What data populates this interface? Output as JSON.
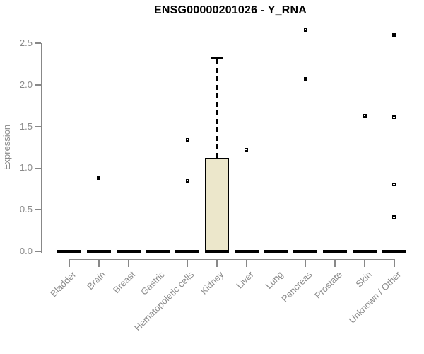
{
  "chart_data": {
    "type": "boxplot",
    "title": "ENSG00000201026 - Y_RNA",
    "ylabel": "Expression",
    "xlabel": "",
    "ylim": [
      0,
      2.5
    ],
    "ytick_values": [
      0,
      0.5,
      1,
      1.5,
      2,
      2.5
    ],
    "ytick_labels": [
      "0.0",
      "0.5",
      "1.0",
      "1.5",
      "2.0",
      "2.5"
    ],
    "grid": "off",
    "legend": "none",
    "categories": [
      "Bladder",
      "Brain",
      "Breast",
      "Gastric",
      "Hematopoietic cells",
      "Kidney",
      "Liver",
      "Lung",
      "Pancreas",
      "Prostate",
      "Skin",
      "Unknown / Other"
    ],
    "boxes": [
      {
        "category": "Bladder",
        "min": 0,
        "q1": 0,
        "median": 0,
        "q3": 0,
        "max": 0,
        "outliers": []
      },
      {
        "category": "Brain",
        "min": 0,
        "q1": 0,
        "median": 0,
        "q3": 0,
        "max": 0,
        "outliers": [
          0.88
        ]
      },
      {
        "category": "Breast",
        "min": 0,
        "q1": 0,
        "median": 0,
        "q3": 0,
        "max": 0,
        "outliers": []
      },
      {
        "category": "Gastric",
        "min": 0,
        "q1": 0,
        "median": 0,
        "q3": 0,
        "max": 0,
        "outliers": []
      },
      {
        "category": "Hematopoietic cells",
        "min": 0,
        "q1": 0,
        "median": 0,
        "q3": 0,
        "max": 0,
        "outliers": [
          1.34,
          0.85
        ]
      },
      {
        "category": "Kidney",
        "min": 0,
        "q1": 0,
        "median": 0,
        "q3": 1.12,
        "max": 2.32,
        "outliers": []
      },
      {
        "category": "Liver",
        "min": 0,
        "q1": 0,
        "median": 0,
        "q3": 0,
        "max": 0,
        "outliers": [
          1.22
        ]
      },
      {
        "category": "Lung",
        "min": 0,
        "q1": 0,
        "median": 0,
        "q3": 0,
        "max": 0,
        "outliers": []
      },
      {
        "category": "Pancreas",
        "min": 0,
        "q1": 0,
        "median": 0,
        "q3": 0,
        "max": 0,
        "outliers": [
          2.66,
          2.07
        ]
      },
      {
        "category": "Prostate",
        "min": 0,
        "q1": 0,
        "median": 0,
        "q3": 0,
        "max": 0,
        "outliers": []
      },
      {
        "category": "Skin",
        "min": 0,
        "q1": 0,
        "median": 0,
        "q3": 0,
        "max": 0,
        "outliers": [
          1.63
        ]
      },
      {
        "category": "Unknown / Other",
        "min": 0,
        "q1": 0,
        "median": 0,
        "q3": 0,
        "max": 0,
        "outliers": [
          2.6,
          1.61,
          0.8,
          0.41
        ]
      }
    ],
    "colors": {
      "box_fill": "#ECE7CB",
      "box_stroke": "#000000",
      "median": "#000000",
      "outlier": "#000000",
      "axis": "#888888",
      "tick_text": "#8a8a8a",
      "title": "#000000",
      "background": "#ffffff"
    }
  }
}
